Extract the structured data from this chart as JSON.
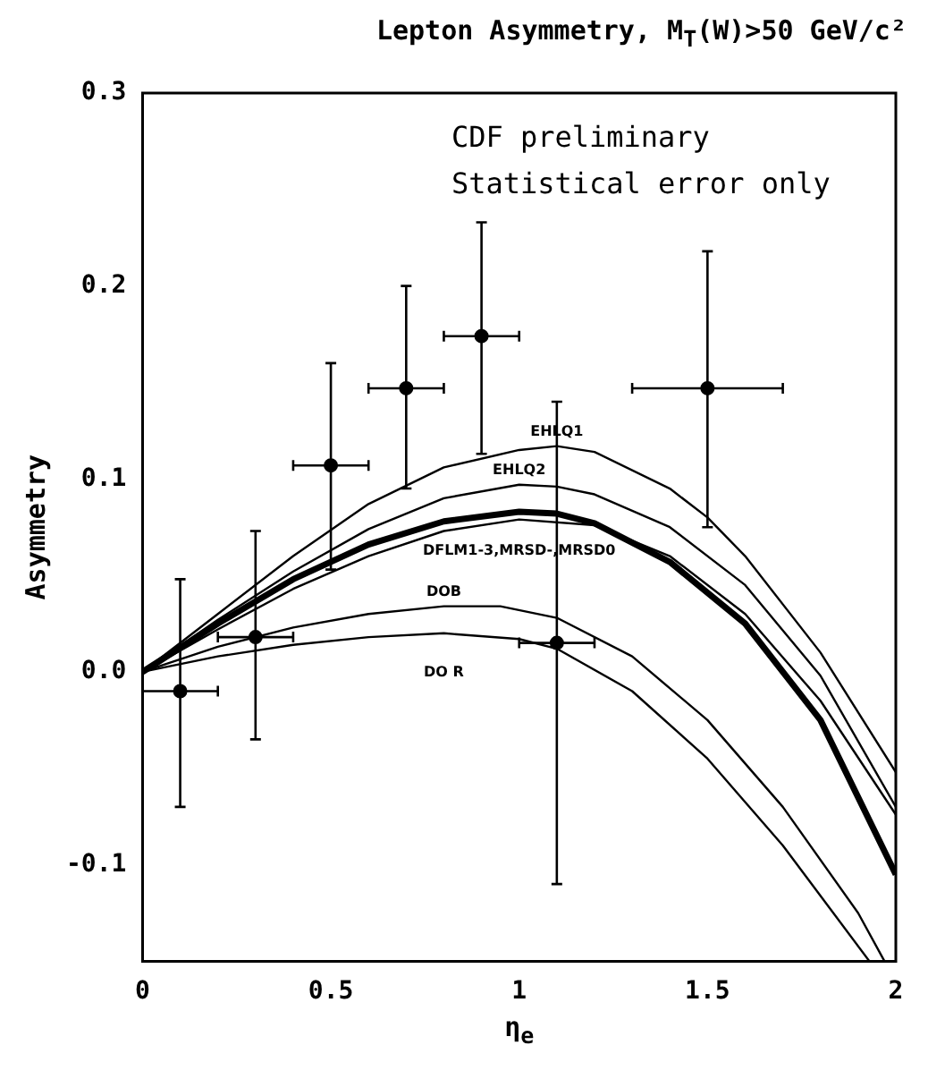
{
  "chart_data": {
    "type": "line",
    "title": "Lepton Asymmetry, M$_{T}$(W)>50 GeV/c²",
    "xlabel": "η$_{e}$",
    "ylabel": "Asymmetry",
    "xlim": [
      0,
      2
    ],
    "xticks": [
      0,
      0.5,
      {
        "value": 1,
        "label": "1"
      },
      1.5,
      2
    ],
    "ylim": [
      -0.15,
      0.3
    ],
    "yticks": [
      {
        "value": -0.1,
        "label": "-0.1"
      },
      {
        "value": 0,
        "label": "0.0"
      },
      0.1,
      0.2,
      0.3
    ],
    "grid": false,
    "legend": false,
    "marker": "none",
    "line_style": "solid",
    "series": [
      {
        "name": "EHLQ1",
        "color": "#000000",
        "x": [
          0,
          0.2,
          0.4,
          0.6,
          0.8,
          1.0,
          1.1,
          1.2,
          1.4,
          1.5,
          1.6,
          1.8,
          2.0
        ],
        "values": [
          0,
          0.03,
          0.06,
          0.087,
          0.106,
          0.115,
          0.117,
          0.114,
          0.095,
          0.08,
          0.06,
          0.01,
          -0.052
        ]
      },
      {
        "name": "EHLQ2",
        "color": "#000000",
        "x": [
          0,
          0.2,
          0.4,
          0.6,
          0.8,
          1.0,
          1.1,
          1.2,
          1.4,
          1.6,
          1.8,
          2.0
        ],
        "values": [
          0,
          0.027,
          0.052,
          0.074,
          0.09,
          0.097,
          0.096,
          0.092,
          0.075,
          0.045,
          -0.002,
          -0.07
        ]
      },
      {
        "name": "DFLM1-3,MRSD-,MRSD0",
        "color": "#000000",
        "x": [
          0,
          0.2,
          0.4,
          0.6,
          0.8,
          1.0,
          1.1,
          1.2,
          1.4,
          1.6,
          1.8,
          2.0
        ],
        "values": [
          0,
          0.025,
          0.048,
          0.066,
          0.078,
          0.083,
          0.082,
          0.077,
          0.057,
          0.025,
          -0.025,
          -0.105
        ]
      },
      {
        "color": "#000000",
        "x": [
          0,
          0.2,
          0.4,
          0.6,
          0.8,
          1.0,
          1.2,
          1.4,
          1.6,
          1.8,
          2.0
        ],
        "values": [
          0,
          0.022,
          0.043,
          0.06,
          0.073,
          0.079,
          0.076,
          0.06,
          0.03,
          -0.015,
          -0.074
        ]
      },
      {
        "name": "DOB",
        "color": "#000000",
        "x": [
          0,
          0.2,
          0.4,
          0.6,
          0.8,
          0.95,
          1.1,
          1.3,
          1.5,
          1.7,
          1.9,
          1.97
        ],
        "values": [
          0,
          0.013,
          0.023,
          0.03,
          0.034,
          0.034,
          0.028,
          0.008,
          -0.025,
          -0.07,
          -0.125,
          -0.15
        ]
      },
      {
        "name": "DO R",
        "color": "#000000",
        "x": [
          0,
          0.2,
          0.4,
          0.6,
          0.8,
          1.0,
          1.1,
          1.3,
          1.5,
          1.7,
          1.93
        ],
        "values": [
          0,
          0.008,
          0.014,
          0.018,
          0.02,
          0.017,
          0.012,
          -0.01,
          -0.045,
          -0.09,
          -0.15
        ]
      },
      {
        "type": "scatter",
        "marker": "circle",
        "color": "#000000",
        "x": [
          0.1,
          0.3,
          0.5,
          0.7,
          0.9,
          1.1,
          1.5
        ],
        "values": [
          -0.01,
          0.018,
          0.107,
          0.147,
          0.174,
          0.015,
          0.147
        ],
        "errors": [
          [
            -0.07,
            0.048
          ],
          [
            -0.035,
            0.073
          ],
          [
            0.053,
            0.16
          ],
          [
            0.095,
            0.2
          ],
          [
            0.113,
            0.233
          ],
          [
            -0.11,
            0.14
          ],
          [
            0.075,
            0.218
          ]
        ],
        "xerrors": [
          0.1,
          0.1,
          0.1,
          0.1,
          0.1,
          0.1,
          0.2
        ]
      }
    ],
    "annotations": [
      "CDF preliminary",
      "Statistical error only"
    ]
  }
}
